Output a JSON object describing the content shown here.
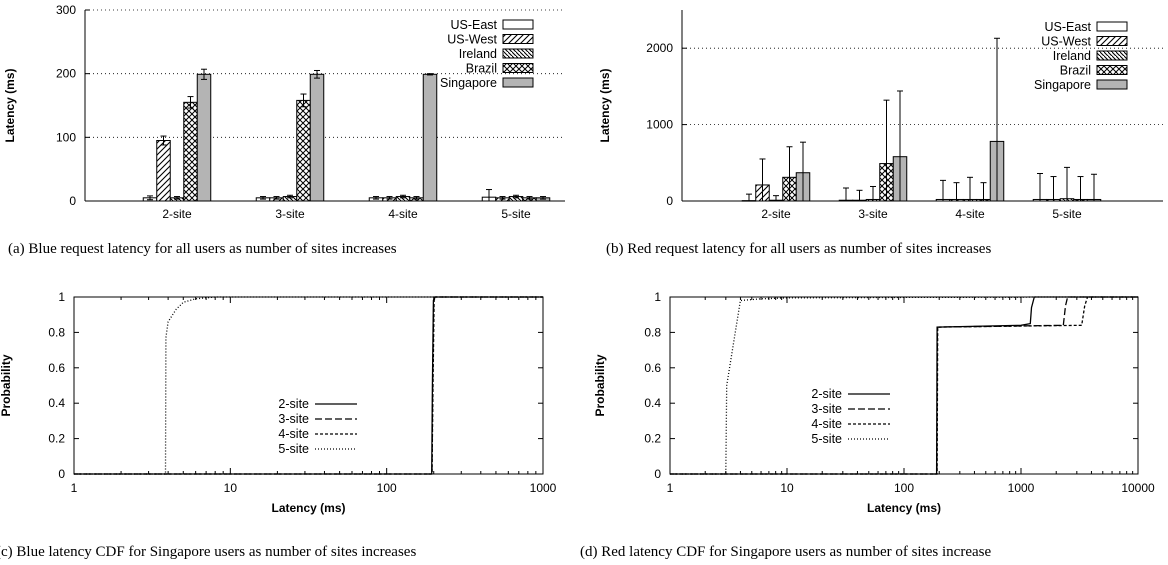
{
  "chart_data": [
    {
      "type": "bar",
      "caption": "(a)  Blue request latency for all users as number of sites increases",
      "ylabel": "Latency (ms)",
      "xlabel": "",
      "ylim": [
        0,
        300
      ],
      "yticks": [
        0,
        100,
        200,
        300
      ],
      "grid": "horizontal dotted",
      "legend_position": "top-right",
      "categories": [
        "2-site",
        "3-site",
        "4-site",
        "5-site"
      ],
      "series": [
        {
          "name": "US-East",
          "pattern": "plain",
          "values": [
            5,
            5,
            5,
            6
          ],
          "errors": [
            3,
            2,
            2,
            12
          ]
        },
        {
          "name": "US-West",
          "pattern": "diag-forward",
          "values": [
            95,
            5,
            5,
            5
          ],
          "errors": [
            7,
            2,
            2,
            2
          ]
        },
        {
          "name": "Ireland",
          "pattern": "diag-back",
          "values": [
            5,
            7,
            7,
            7
          ],
          "errors": [
            2,
            2,
            2,
            2
          ]
        },
        {
          "name": "Brazil",
          "pattern": "crosshatch",
          "values": [
            155,
            158,
            5,
            5
          ],
          "errors": [
            9,
            10,
            2,
            2
          ]
        },
        {
          "name": "Singapore",
          "pattern": "gray",
          "values": [
            199,
            199,
            199,
            5
          ],
          "errors": [
            8,
            6,
            1,
            2
          ]
        }
      ]
    },
    {
      "type": "bar",
      "caption": "(b)  Red request latency for all users as number of sites increases",
      "ylabel": "Latency (ms)",
      "xlabel": "",
      "ylim": [
        0,
        2500
      ],
      "yticks": [
        0,
        1000,
        2000
      ],
      "grid": "horizontal dotted",
      "legend_position": "top-right",
      "categories": [
        "2-site",
        "3-site",
        "4-site",
        "5-site"
      ],
      "series": [
        {
          "name": "US-East",
          "pattern": "plain",
          "values": [
            5,
            10,
            20,
            20
          ],
          "errors": [
            85,
            160,
            250,
            340
          ]
        },
        {
          "name": "US-West",
          "pattern": "diag-forward",
          "values": [
            210,
            10,
            20,
            20
          ],
          "errors": [
            340,
            130,
            220,
            300
          ]
        },
        {
          "name": "Ireland",
          "pattern": "diag-back",
          "values": [
            10,
            20,
            20,
            30
          ],
          "errors": [
            60,
            170,
            290,
            410
          ]
        },
        {
          "name": "Brazil",
          "pattern": "crosshatch",
          "values": [
            310,
            490,
            20,
            20
          ],
          "errors": [
            400,
            830,
            220,
            300
          ]
        },
        {
          "name": "Singapore",
          "pattern": "gray",
          "values": [
            370,
            580,
            780,
            20
          ],
          "errors": [
            400,
            860,
            1350,
            330
          ]
        }
      ]
    },
    {
      "type": "line",
      "caption": "(c)  Blue latency CDF for Singapore users as number of sites increases",
      "xlabel": "Latency (ms)",
      "ylabel": "Probability",
      "xscale": "log",
      "xlim": [
        1,
        1000
      ],
      "xticks": [
        1,
        10,
        100,
        1000
      ],
      "ylim": [
        0,
        1
      ],
      "yticks": [
        0,
        0.2,
        0.4,
        0.6,
        0.8,
        1
      ],
      "legend_position": "center",
      "series": [
        {
          "name": "2-site",
          "style": "solid",
          "x": [
            1,
            194,
            196,
            199,
            203,
            1000
          ],
          "y": [
            0,
            0,
            0.5,
            0.98,
            1,
            1
          ]
        },
        {
          "name": "3-site",
          "style": "dashed",
          "x": [
            1,
            195,
            197,
            200,
            204,
            1000
          ],
          "y": [
            0,
            0,
            0.5,
            0.98,
            1,
            1
          ]
        },
        {
          "name": "4-site",
          "style": "short-dash",
          "x": [
            1,
            195,
            198,
            201,
            205,
            1000
          ],
          "y": [
            0,
            0,
            0.5,
            0.98,
            1,
            1
          ]
        },
        {
          "name": "5-site",
          "style": "dotted",
          "x": [
            1,
            3.85,
            3.87,
            4,
            4.5,
            5,
            6,
            7,
            8,
            10,
            1000
          ],
          "y": [
            0,
            0,
            0.77,
            0.86,
            0.93,
            0.97,
            0.99,
            0.995,
            1,
            1,
            1
          ]
        }
      ]
    },
    {
      "type": "line",
      "caption": "(d)  Red latency CDF for Singapore users as number of sites increase",
      "xlabel": "Latency (ms)",
      "ylabel": "Probability",
      "xscale": "log",
      "xlim": [
        1,
        10000
      ],
      "xticks": [
        1,
        10,
        100,
        1000,
        10000
      ],
      "ylim": [
        0,
        1
      ],
      "yticks": [
        0,
        0.2,
        0.4,
        0.6,
        0.8,
        1
      ],
      "legend_position": "center",
      "series": [
        {
          "name": "2-site",
          "style": "solid",
          "x": [
            1,
            190,
            192,
            1000,
            1200,
            1230,
            1300,
            10000
          ],
          "y": [
            0,
            0,
            0.83,
            0.84,
            0.85,
            0.94,
            1,
            1
          ]
        },
        {
          "name": "3-site",
          "style": "dashed",
          "x": [
            1,
            191,
            193,
            2300,
            2400,
            2500,
            10000
          ],
          "y": [
            0,
            0,
            0.83,
            0.84,
            0.95,
            1,
            1
          ]
        },
        {
          "name": "4-site",
          "style": "short-dash",
          "x": [
            1,
            192,
            194,
            3300,
            3500,
            3700,
            10000
          ],
          "y": [
            0,
            0,
            0.83,
            0.84,
            0.95,
            1,
            1
          ]
        },
        {
          "name": "5-site",
          "style": "dotted",
          "x": [
            1,
            3,
            3.05,
            4,
            6,
            10,
            100,
            1000,
            1300,
            10000
          ],
          "y": [
            0,
            0,
            0.5,
            0.98,
            0.99,
            0.995,
            0.998,
            0.999,
            1,
            1
          ]
        }
      ]
    }
  ]
}
